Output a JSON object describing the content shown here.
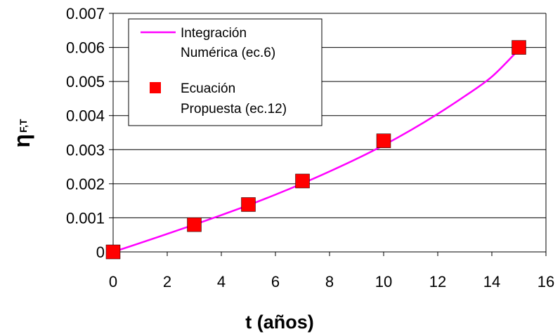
{
  "chart_data": {
    "type": "line",
    "xlabel": "t (años)",
    "ylabel": {
      "main": "η",
      "subscript": "F,T"
    },
    "xlim": [
      0,
      16
    ],
    "ylim": [
      0,
      0.007
    ],
    "x_ticks": [
      "0",
      "2",
      "4",
      "6",
      "8",
      "10",
      "12",
      "14",
      "16"
    ],
    "y_ticks": [
      "0",
      "0.001",
      "0.002",
      "0.003",
      "0.004",
      "0.005",
      "0.006",
      "0.007"
    ],
    "grid": "horizontal",
    "legend_position": "top-left",
    "series": [
      {
        "name": "Integración Numérica (ec.6)",
        "legend_lines": [
          "Integración",
          "Numérica (ec.6)"
        ],
        "kind": "line",
        "color": "#ff00ff",
        "x": [
          0,
          1,
          2,
          3,
          4,
          5,
          6,
          7,
          8,
          9,
          10,
          11,
          12,
          13,
          14,
          15
        ],
        "y": [
          0,
          0.00026,
          0.00053,
          0.0008,
          0.00108,
          0.00137,
          0.00168,
          0.00201,
          0.00236,
          0.00273,
          0.00313,
          0.00357,
          0.00405,
          0.00457,
          0.00514,
          0.00594
        ]
      },
      {
        "name": "Ecuación Propuesta (ec.12)",
        "legend_lines": [
          "Ecuación",
          "Propuesta (ec.12)"
        ],
        "kind": "marker",
        "marker": "square",
        "color": "#ff0000",
        "x": [
          0,
          3,
          5,
          7,
          10,
          15
        ],
        "y": [
          0,
          0.0008,
          0.00139,
          0.00208,
          0.00326,
          0.006
        ]
      }
    ]
  }
}
